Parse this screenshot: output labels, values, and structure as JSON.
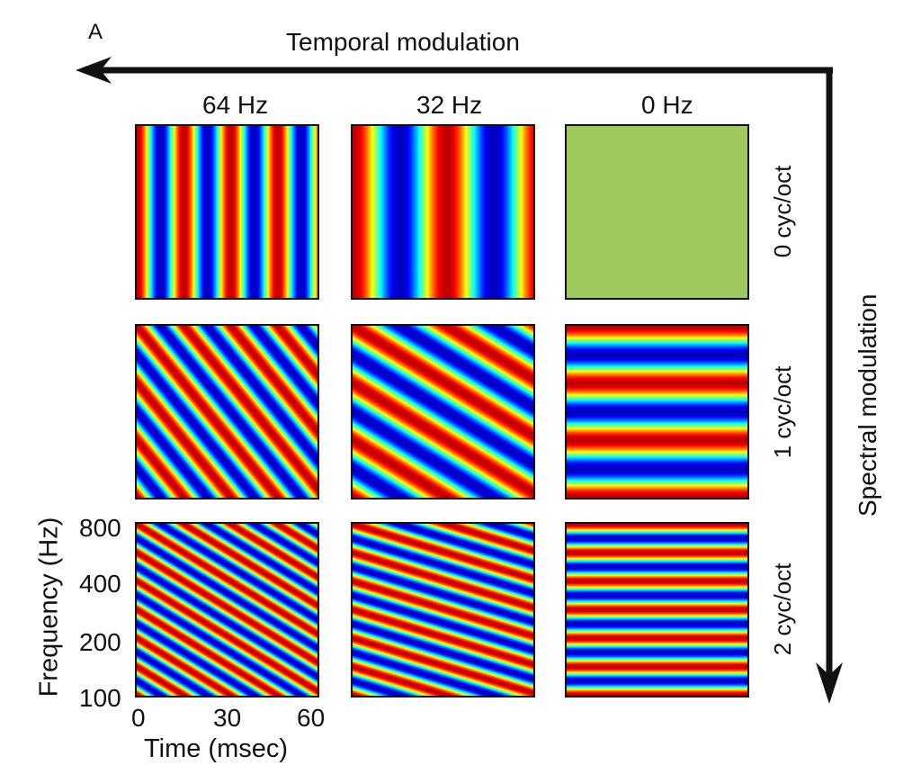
{
  "figure": {
    "panel_letter": "A",
    "temporal_axis_label": "Temporal modulation",
    "spectral_axis_label": "Spectral modulation",
    "temporal_rates": [
      "64 Hz",
      "32 Hz",
      "0 Hz"
    ],
    "spectral_scales": [
      "0 cyc/oct",
      "1 cyc/oct",
      "2 cyc/oct"
    ],
    "y_axis_label": "Frequency (Hz)",
    "y_ticks": [
      "800",
      "400",
      "200",
      "100"
    ],
    "x_axis_label": "Time (msec)",
    "x_ticks": [
      "0",
      "30",
      "60"
    ]
  },
  "chart_data": {
    "type": "heatmap",
    "rows_omega_cyc_per_oct": [
      0,
      1,
      2
    ],
    "cols_rate_hz": [
      64,
      32,
      0
    ],
    "x_range_msec": [
      0,
      60
    ],
    "y_range_hz": [
      100,
      800
    ],
    "y_scale": "log",
    "colormap": "jet",
    "constant_color": "#9ec95e"
  }
}
